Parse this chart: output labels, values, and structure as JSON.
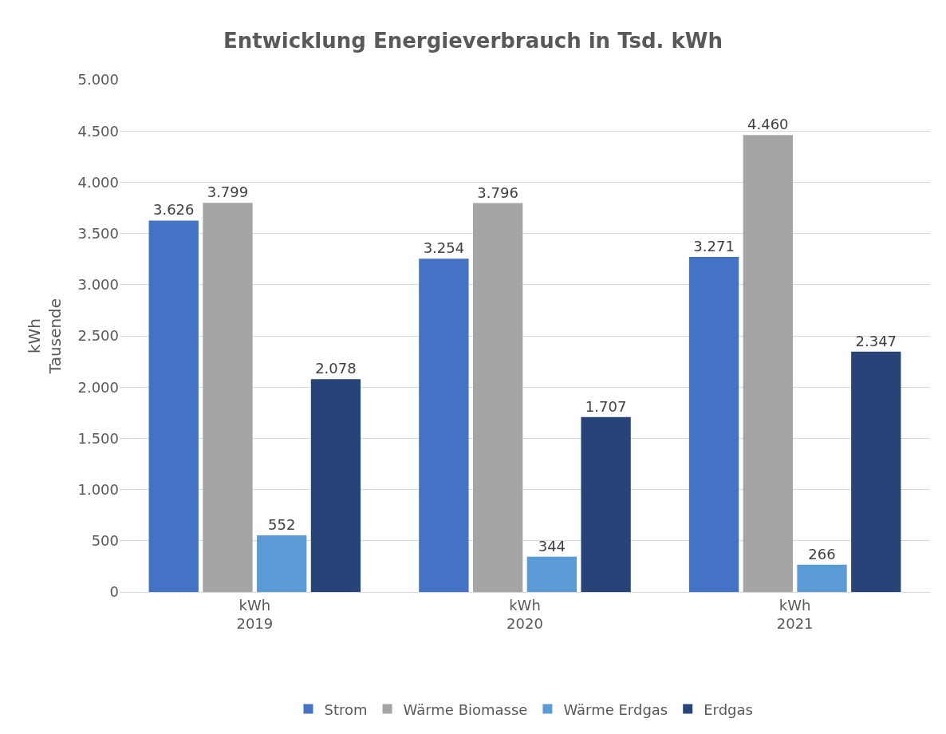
{
  "chart_data": {
    "type": "bar",
    "title": "Entwicklung Energieverbrauch in Tsd. kWh",
    "ylabel": "kWh\nTausende",
    "categories": [
      "kWh\n2019",
      "kWh\n2020",
      "kWh\n2021"
    ],
    "series": [
      {
        "name": "Strom",
        "color": "#4472c4",
        "values": [
          3626,
          3254,
          3271
        ],
        "value_labels": [
          "3.626",
          "3.254",
          "3.271"
        ]
      },
      {
        "name": "Wärme Biomasse",
        "color": "#a5a5a5",
        "values": [
          3799,
          3796,
          4460
        ],
        "value_labels": [
          "3.799",
          "3.796",
          "4.460"
        ]
      },
      {
        "name": "Wärme Erdgas",
        "color": "#5b9bd5",
        "values": [
          552,
          344,
          266
        ],
        "value_labels": [
          "552",
          "344",
          "266"
        ]
      },
      {
        "name": "Erdgas",
        "color": "#264478",
        "values": [
          2078,
          1707,
          2347
        ],
        "value_labels": [
          "2.078",
          "1.707",
          "2.347"
        ]
      }
    ],
    "ylim": [
      0,
      5000
    ],
    "yticks": [
      0,
      {
        "value": 500,
        "label": "500"
      },
      {
        "value": 1000,
        "label": "1.000"
      },
      {
        "value": 1500,
        "label": "1.500"
      },
      {
        "value": 2000,
        "label": "2.000"
      },
      {
        "value": 2500,
        "label": "2.500"
      },
      {
        "value": 3000,
        "label": "3.000"
      },
      {
        "value": 3500,
        "label": "3.500"
      },
      {
        "value": 4000,
        "label": "4.000"
      },
      {
        "value": 4500,
        "label": "4.500"
      },
      {
        "value": 5000,
        "label": "5.000"
      }
    ],
    "grid": "y",
    "legend": "bottom"
  }
}
